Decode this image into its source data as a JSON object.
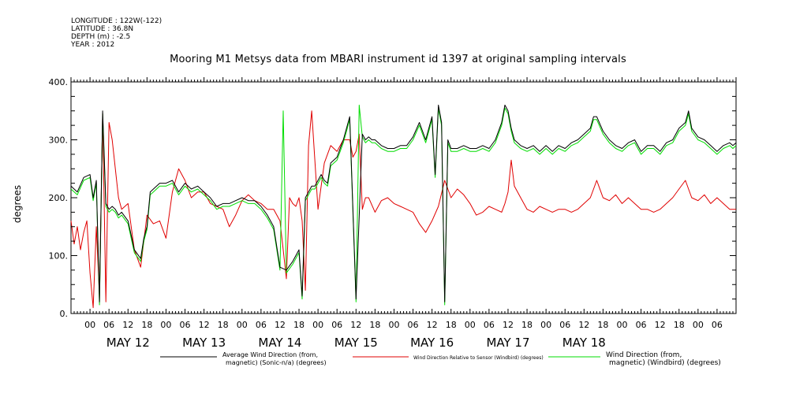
{
  "header": {
    "lines": [
      "LONGITUDE : 122W(-122)",
      "LATITUDE : 36.8N",
      "DEPTH (m) : -2.5",
      "YEAR : 2012"
    ]
  },
  "colors": {
    "black_series": "#000000",
    "red_series": "#e00000",
    "green_series": "#00dd00"
  },
  "chart_data": {
    "type": "line",
    "title": "Mooring M1 Metsys data from MBARI instrument id 1397 at original sampling intervals",
    "ylabel": "degrees",
    "ylim": [
      0,
      400
    ],
    "yticks": [
      0,
      100,
      200,
      300,
      400
    ],
    "ytick_labels": [
      "0.",
      "100.",
      "200.",
      "300.",
      "400."
    ],
    "xlim_hours": [
      -6,
      204
    ],
    "xtick_hours": [
      0,
      6,
      12,
      18,
      24,
      30,
      36,
      42,
      48,
      54,
      60,
      66,
      72,
      78,
      84,
      90,
      96,
      102,
      108,
      114,
      120,
      126,
      132,
      138,
      144,
      150,
      156,
      162,
      168,
      174,
      180,
      186,
      192,
      198
    ],
    "xtick_labels": [
      "00",
      "06",
      "12",
      "18",
      "00",
      "06",
      "12",
      "18",
      "00",
      "06",
      "12",
      "18",
      "00",
      "06",
      "12",
      "18",
      "00",
      "06",
      "12",
      "18",
      "00",
      "06",
      "12",
      "18",
      "00",
      "06",
      "12",
      "18",
      "00",
      "06",
      "12",
      "18",
      "00",
      "06"
    ],
    "day_labels": [
      {
        "hour": 12,
        "label": "MAY 12"
      },
      {
        "hour": 36,
        "label": "MAY 13"
      },
      {
        "hour": 60,
        "label": "MAY 14"
      },
      {
        "hour": 84,
        "label": "MAY 15"
      },
      {
        "hour": 108,
        "label": "MAY 16"
      },
      {
        "hour": 132,
        "label": "MAY 17"
      },
      {
        "hour": 156,
        "label": "MAY 18"
      }
    ],
    "series": [
      {
        "name": "Average Wind Direction (from, magnetic) (Sonic-n/a) (degrees)",
        "legend_line1": "Average Wind Direction (from,",
        "legend_line2": "magnetic) (Sonic-n/a) (degrees)",
        "color": "#000000",
        "x": [
          -6,
          -4,
          -2,
          0,
          1,
          2,
          3,
          4,
          5,
          6,
          7,
          8,
          9,
          10,
          12,
          14,
          16,
          17,
          18,
          19,
          20,
          22,
          24,
          26,
          28,
          30,
          32,
          34,
          36,
          38,
          40,
          42,
          44,
          46,
          48,
          50,
          52,
          54,
          56,
          58,
          60,
          62,
          64,
          66,
          67,
          68,
          69,
          70,
          71,
          72,
          73,
          74,
          75,
          76,
          78,
          80,
          82,
          84,
          86,
          87,
          88,
          89,
          90,
          92,
          94,
          96,
          98,
          100,
          102,
          104,
          106,
          108,
          109,
          110,
          111,
          112,
          113,
          114,
          116,
          118,
          120,
          122,
          124,
          126,
          128,
          130,
          131,
          132,
          133,
          134,
          136,
          138,
          140,
          142,
          144,
          146,
          148,
          150,
          152,
          154,
          156,
          158,
          159,
          160,
          162,
          164,
          166,
          168,
          170,
          172,
          174,
          176,
          178,
          180,
          182,
          184,
          186,
          188,
          189,
          190,
          192,
          194,
          196,
          198,
          200,
          202,
          203,
          204
        ],
        "y": [
          220,
          210,
          235,
          240,
          200,
          230,
          20,
          350,
          190,
          180,
          185,
          180,
          170,
          175,
          160,
          110,
          95,
          130,
          150,
          210,
          215,
          225,
          225,
          230,
          210,
          225,
          215,
          220,
          210,
          200,
          185,
          190,
          190,
          195,
          200,
          195,
          195,
          185,
          170,
          150,
          80,
          75,
          90,
          110,
          30,
          200,
          210,
          220,
          220,
          230,
          240,
          230,
          225,
          260,
          270,
          300,
          340,
          25,
          310,
          300,
          305,
          300,
          300,
          290,
          285,
          285,
          290,
          290,
          305,
          330,
          300,
          340,
          240,
          360,
          330,
          20,
          300,
          285,
          285,
          290,
          285,
          285,
          290,
          285,
          300,
          330,
          360,
          350,
          320,
          300,
          290,
          285,
          290,
          280,
          290,
          280,
          290,
          285,
          295,
          300,
          310,
          320,
          340,
          340,
          315,
          300,
          290,
          285,
          295,
          300,
          280,
          290,
          290,
          280,
          295,
          300,
          320,
          330,
          350,
          320,
          305,
          300,
          290,
          280,
          290,
          295,
          290,
          295
        ]
      },
      {
        "name": "Wind Direction Relative to Sensor (Windbird) (degrees)",
        "legend_line1": "Wind Direction Relative to Sensor (Windbird) (degrees)",
        "legend_line2": "",
        "color": "#e00000",
        "x": [
          -6,
          -5,
          -4,
          -3,
          -2,
          -1,
          0,
          1,
          2,
          3,
          4,
          5,
          6,
          7,
          8,
          9,
          10,
          12,
          14,
          16,
          18,
          20,
          22,
          24,
          26,
          28,
          30,
          32,
          34,
          36,
          38,
          40,
          42,
          44,
          46,
          48,
          50,
          52,
          54,
          56,
          58,
          60,
          61,
          62,
          63,
          64,
          65,
          66,
          67,
          68,
          69,
          70,
          72,
          74,
          76,
          78,
          80,
          82,
          83,
          84,
          85,
          86,
          87,
          88,
          90,
          92,
          94,
          96,
          98,
          100,
          102,
          104,
          106,
          108,
          110,
          112,
          114,
          116,
          118,
          120,
          122,
          124,
          126,
          128,
          130,
          131,
          132,
          133,
          134,
          136,
          138,
          140,
          142,
          144,
          146,
          148,
          150,
          152,
          154,
          156,
          158,
          159,
          160,
          162,
          164,
          166,
          168,
          170,
          172,
          174,
          176,
          178,
          180,
          182,
          184,
          186,
          188,
          190,
          192,
          194,
          196,
          198,
          200,
          202,
          204
        ],
        "y": [
          160,
          120,
          150,
          110,
          140,
          160,
          70,
          10,
          150,
          30,
          345,
          20,
          330,
          300,
          250,
          200,
          180,
          190,
          110,
          80,
          170,
          155,
          160,
          130,
          210,
          250,
          230,
          200,
          210,
          210,
          190,
          185,
          180,
          150,
          170,
          195,
          205,
          195,
          190,
          180,
          180,
          160,
          110,
          60,
          200,
          190,
          185,
          200,
          160,
          40,
          290,
          350,
          180,
          260,
          290,
          280,
          300,
          300,
          270,
          280,
          310,
          180,
          200,
          200,
          175,
          195,
          200,
          190,
          185,
          180,
          175,
          155,
          140,
          160,
          185,
          230,
          200,
          215,
          205,
          190,
          170,
          175,
          185,
          180,
          175,
          190,
          210,
          265,
          220,
          200,
          180,
          175,
          185,
          180,
          175,
          180,
          180,
          175,
          180,
          190,
          200,
          215,
          230,
          200,
          195,
          205,
          190,
          200,
          190,
          180,
          180,
          175,
          180,
          190,
          200,
          215,
          230,
          200,
          195,
          205,
          190,
          200,
          190,
          180,
          180
        ]
      },
      {
        "name": "Wind Direction (from, magnetic) (Windbird) (degrees)",
        "legend_line1": "Wind Direction (from,",
        "legend_line2": "magnetic) (Windbird) (degrees)",
        "color": "#00dd00",
        "x": [
          -6,
          -4,
          -2,
          0,
          1,
          2,
          3,
          4,
          5,
          6,
          7,
          8,
          9,
          10,
          12,
          14,
          16,
          17,
          18,
          19,
          20,
          22,
          24,
          26,
          28,
          30,
          32,
          34,
          36,
          38,
          40,
          42,
          44,
          46,
          48,
          50,
          52,
          54,
          56,
          58,
          60,
          61,
          62,
          64,
          66,
          67,
          68,
          69,
          70,
          71,
          72,
          73,
          74,
          75,
          76,
          78,
          80,
          82,
          84,
          85,
          86,
          87,
          88,
          89,
          90,
          92,
          94,
          96,
          98,
          100,
          102,
          104,
          106,
          108,
          109,
          110,
          111,
          112,
          113,
          114,
          116,
          118,
          120,
          122,
          124,
          126,
          128,
          130,
          131,
          132,
          133,
          134,
          136,
          138,
          140,
          142,
          144,
          146,
          148,
          150,
          152,
          154,
          156,
          158,
          159,
          160,
          162,
          164,
          166,
          168,
          170,
          172,
          174,
          176,
          178,
          180,
          182,
          184,
          186,
          188,
          189,
          190,
          192,
          194,
          196,
          198,
          200,
          202,
          203,
          204
        ],
        "y": [
          215,
          205,
          230,
          235,
          195,
          225,
          15,
          345,
          185,
          175,
          180,
          175,
          165,
          170,
          155,
          105,
          90,
          125,
          145,
          205,
          210,
          220,
          220,
          225,
          205,
          220,
          210,
          215,
          205,
          195,
          180,
          185,
          185,
          190,
          195,
          190,
          190,
          180,
          165,
          145,
          75,
          350,
          70,
          85,
          105,
          25,
          195,
          205,
          215,
          215,
          225,
          235,
          225,
          220,
          255,
          265,
          295,
          335,
          20,
          360,
          305,
          295,
          300,
          295,
          295,
          285,
          280,
          280,
          285,
          285,
          300,
          325,
          295,
          335,
          235,
          355,
          325,
          15,
          295,
          280,
          280,
          285,
          280,
          280,
          285,
          280,
          295,
          325,
          355,
          345,
          315,
          295,
          285,
          280,
          285,
          275,
          285,
          275,
          285,
          280,
          290,
          295,
          305,
          315,
          335,
          335,
          310,
          295,
          285,
          280,
          290,
          295,
          275,
          285,
          285,
          275,
          290,
          295,
          315,
          325,
          345,
          315,
          300,
          295,
          285,
          275,
          285,
          290,
          285,
          290
        ]
      }
    ]
  }
}
